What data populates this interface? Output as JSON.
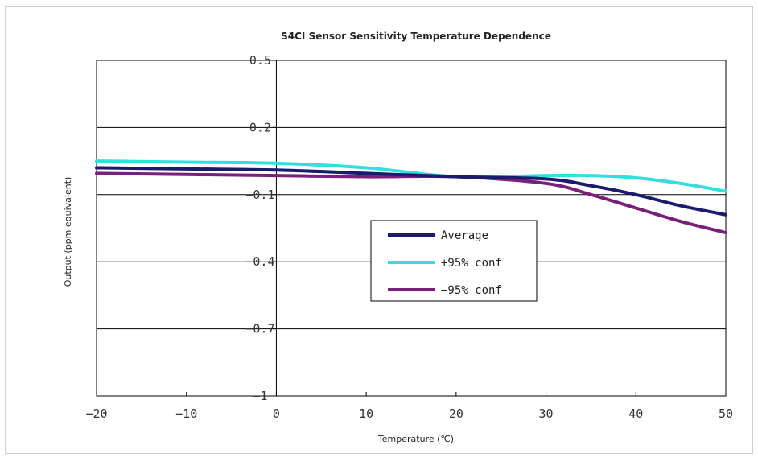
{
  "chart_data": {
    "type": "line",
    "title": "S4CI Sensor Sensitivity Temperature Dependence",
    "xlabel": "Temperature (℃)",
    "ylabel": "Output (ppm equivalent)",
    "xlim": [
      -20,
      50
    ],
    "ylim": [
      -1,
      0.5
    ],
    "x_ticks": [
      -20,
      -10,
      0,
      10,
      20,
      30,
      40,
      50
    ],
    "x_tick_labels": [
      "−20",
      "−10",
      "0",
      "10",
      "20",
      "30",
      "40",
      "50"
    ],
    "y_ticks": [
      0.5,
      0.2,
      -0.1,
      -0.4,
      -0.7,
      -1
    ],
    "y_tick_labels": [
      "0.5",
      "0.2",
      "−0.1",
      "−0.4",
      "−0.7",
      "−1"
    ],
    "grid": "horizontal",
    "legend_position": "center-right",
    "series": [
      {
        "name": "Average",
        "color": "#1a1a6e",
        "x": [
          -20,
          -10,
          0,
          10,
          20,
          30,
          35,
          40,
          45,
          50
        ],
        "y": [
          0.02,
          0.015,
          0.01,
          -0.005,
          -0.02,
          -0.03,
          -0.06,
          -0.1,
          -0.15,
          -0.19
        ]
      },
      {
        "name": "+95% conf",
        "color": "#33dede",
        "x": [
          -20,
          -10,
          0,
          10,
          20,
          30,
          35,
          40,
          45,
          50
        ],
        "y": [
          0.05,
          0.045,
          0.04,
          0.02,
          -0.02,
          -0.015,
          -0.015,
          -0.025,
          -0.05,
          -0.085
        ]
      },
      {
        "name": "−95% conf",
        "color": "#7a1f7a",
        "x": [
          -20,
          -10,
          0,
          10,
          20,
          30,
          35,
          40,
          45,
          50
        ],
        "y": [
          -0.005,
          -0.01,
          -0.015,
          -0.02,
          -0.02,
          -0.05,
          -0.1,
          -0.16,
          -0.22,
          -0.27
        ]
      }
    ]
  }
}
